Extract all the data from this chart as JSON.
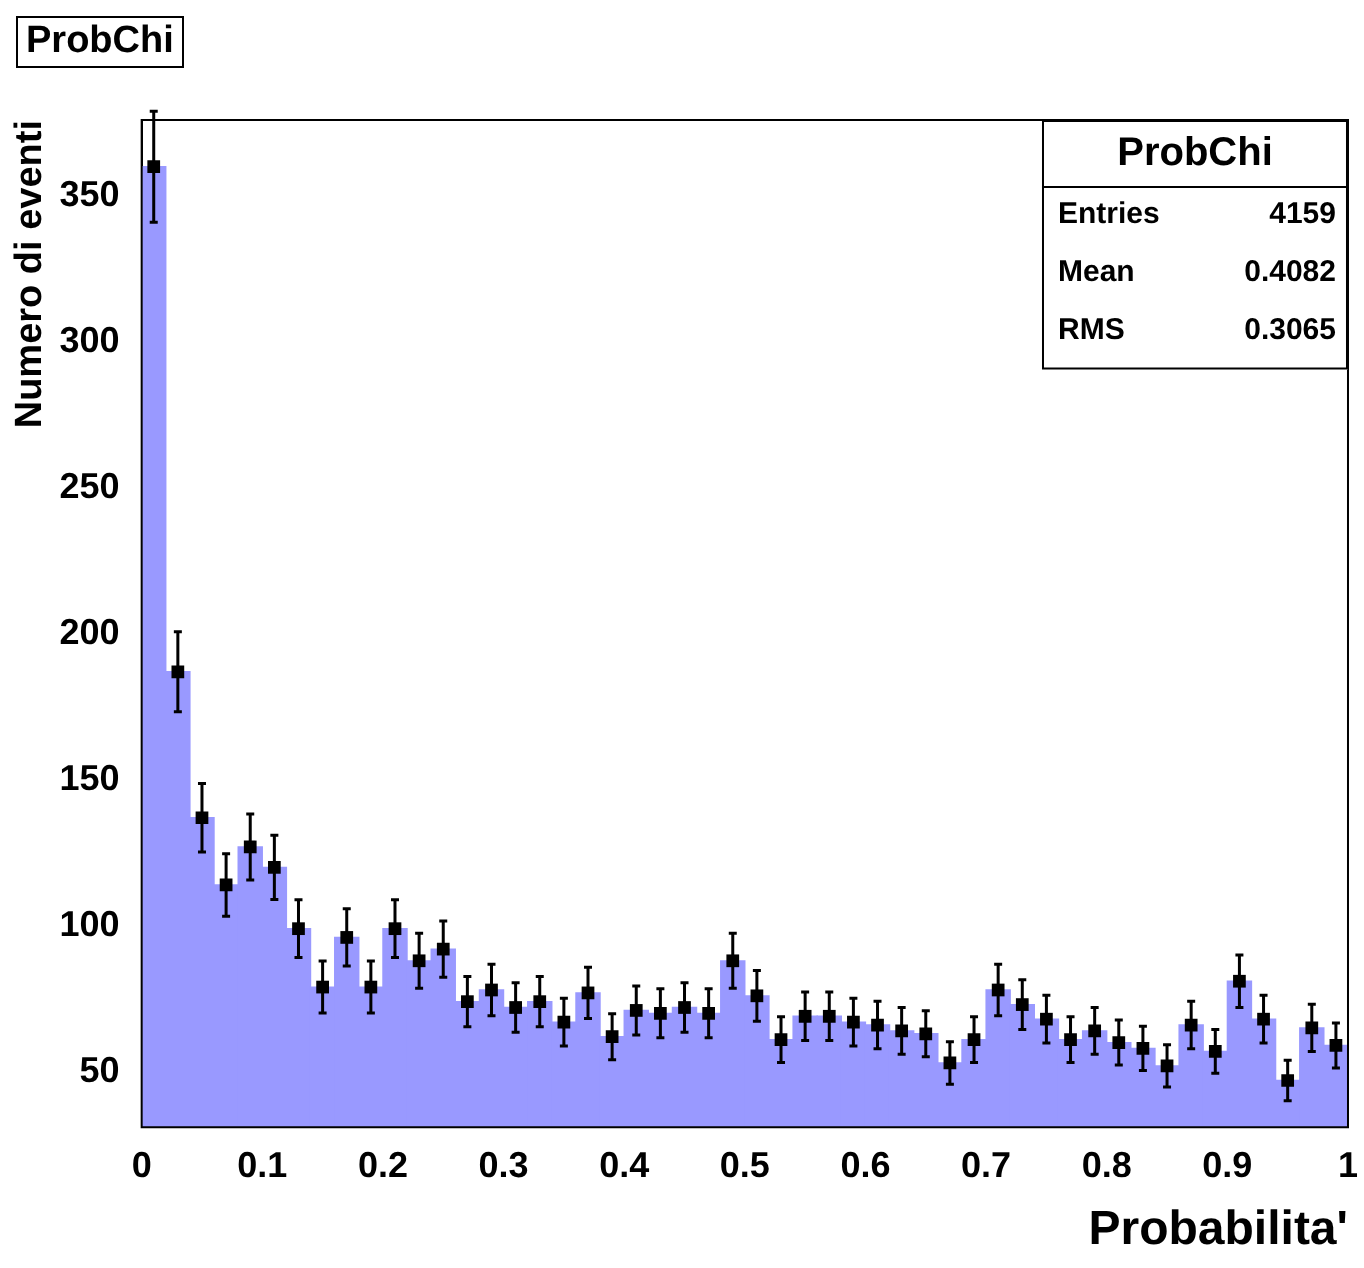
{
  "chart_data": {
    "type": "histogram",
    "title": "ProbChi",
    "xlabel": "Probabilita'",
    "ylabel": "Numero di eventi",
    "bins": [
      0,
      0.02,
      0.04,
      0.06,
      0.08,
      0.1,
      0.12,
      0.14,
      0.16,
      0.18,
      0.2,
      0.22,
      0.24,
      0.26,
      0.28,
      0.3,
      0.32,
      0.34,
      0.36,
      0.38,
      0.4,
      0.42,
      0.44,
      0.46,
      0.48,
      0.5,
      0.52,
      0.54,
      0.56,
      0.58,
      0.6,
      0.62,
      0.64,
      0.66,
      0.68,
      0.7,
      0.72,
      0.74,
      0.76,
      0.78,
      0.8,
      0.82,
      0.84,
      0.86,
      0.88,
      0.9,
      0.92,
      0.94,
      0.96,
      0.98,
      1
    ],
    "values": [
      360,
      187,
      137,
      114,
      127,
      120,
      99,
      79,
      96,
      79,
      99,
      88,
      92,
      74,
      78,
      72,
      74,
      67,
      77,
      62,
      71,
      70,
      72,
      70,
      88,
      76,
      61,
      69,
      69,
      67,
      66,
      64,
      63,
      53,
      61,
      78,
      73,
      68,
      61,
      64,
      60,
      58,
      52,
      66,
      57,
      81,
      68,
      47,
      65,
      59
    ],
    "color": "#9999ff",
    "series": [
      {
        "type": "scatter",
        "color": "#000000",
        "marker": "square",
        "x": [
          0.01,
          0.03,
          0.05,
          0.07,
          0.09,
          0.11,
          0.13,
          0.15,
          0.17,
          0.19,
          0.21,
          0.23,
          0.25,
          0.27,
          0.29,
          0.31,
          0.33,
          0.35,
          0.37,
          0.39,
          0.41,
          0.43,
          0.45,
          0.47,
          0.49,
          0.51,
          0.53,
          0.55,
          0.57,
          0.59,
          0.61,
          0.63,
          0.65,
          0.67,
          0.69,
          0.71,
          0.73,
          0.75,
          0.77,
          0.79,
          0.81,
          0.83,
          0.85,
          0.87,
          0.89,
          0.91,
          0.93,
          0.95,
          0.97,
          0.99
        ],
        "values": [
          360,
          187,
          137,
          114,
          127,
          120,
          99,
          79,
          96,
          79,
          99,
          88,
          92,
          74,
          78,
          72,
          74,
          67,
          77,
          62,
          71,
          70,
          72,
          70,
          88,
          76,
          61,
          69,
          69,
          67,
          66,
          64,
          63,
          53,
          61,
          78,
          73,
          68,
          61,
          64,
          60,
          58,
          52,
          66,
          57,
          81,
          68,
          47,
          65,
          59
        ],
        "errors": [
          19,
          13.7,
          11.7,
          10.7,
          11.3,
          11,
          9.9,
          8.9,
          9.8,
          8.9,
          9.9,
          9.4,
          9.6,
          8.6,
          8.8,
          8.5,
          8.6,
          8.2,
          8.8,
          7.9,
          8.4,
          8.4,
          8.5,
          8.4,
          9.4,
          8.7,
          7.8,
          8.3,
          8.3,
          8.2,
          8.1,
          8,
          7.9,
          7.3,
          7.8,
          8.8,
          8.5,
          8.2,
          7.8,
          8,
          7.7,
          7.6,
          7.2,
          8.1,
          7.5,
          9,
          8.2,
          6.9,
          8.1,
          7.7
        ]
      }
    ],
    "xlim": [
      0,
      1
    ],
    "xticks": [
      0,
      0.1,
      0.2,
      0.3,
      0.4,
      0.5,
      0.6,
      0.7,
      0.8,
      0.9,
      1
    ],
    "ylim": [
      31,
      376
    ],
    "yticks": [
      50,
      100,
      150,
      200,
      250,
      300,
      350
    ],
    "grid": false,
    "legend": false,
    "annotations": [
      "ProbChi",
      "Entries 4159",
      "Mean 0.4082",
      "RMS 0.3065"
    ]
  }
}
